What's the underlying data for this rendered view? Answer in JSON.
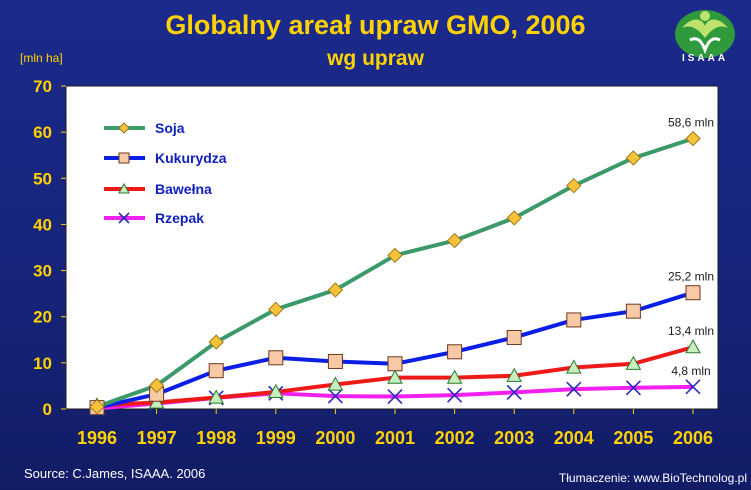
{
  "header": {
    "title": "Globalny areał upraw GMO, 2006",
    "subtitle": "wg upraw",
    "unit_label": "[mln ha]"
  },
  "logo": {
    "text": "ISAAA"
  },
  "footer": {
    "source": "Source: C.James, ISAAA. 2006",
    "translation": "Tłumaczenie: www.BioTechnolog.pl"
  },
  "colors": {
    "title": "#ffd200",
    "axis_text": "#ffd200",
    "legend_text": "#1020c0",
    "plot_bg": "#ffffff",
    "soja": "#3c9a6a",
    "soja_marker": "#f5c23a",
    "kukurydza": "#0a1ee6",
    "kukurydza_marker": "#f7c9a5",
    "bawelna": "#ee1a1a",
    "bawelna_marker": "#c8eec0",
    "rzepak": "#f020f0",
    "rzepak_marker": "#2a2ac0"
  },
  "chart_data": {
    "type": "line",
    "title": "Globalny areał upraw GMO, 2006",
    "subtitle": "wg upraw",
    "xlabel": "",
    "ylabel": "[mln ha]",
    "ylim": [
      0,
      70
    ],
    "yticks": [
      0,
      10,
      20,
      30,
      40,
      50,
      60,
      70
    ],
    "grid": false,
    "legend_position": "top-left",
    "categories": [
      "1996",
      "1997",
      "1998",
      "1999",
      "2000",
      "2001",
      "2002",
      "2003",
      "2004",
      "2005",
      "2006"
    ],
    "series": [
      {
        "name": "Soja",
        "marker": "diamond",
        "values": [
          0.5,
          5.1,
          14.5,
          21.6,
          25.8,
          33.3,
          36.5,
          41.4,
          48.4,
          54.4,
          58.6
        ]
      },
      {
        "name": "Kukurydza",
        "marker": "square",
        "values": [
          0.3,
          3.2,
          8.3,
          11.1,
          10.3,
          9.8,
          12.4,
          15.5,
          19.3,
          21.2,
          25.2
        ]
      },
      {
        "name": "Bawełna",
        "marker": "triangle",
        "values": [
          0.8,
          1.4,
          2.5,
          3.7,
          5.3,
          6.8,
          6.8,
          7.2,
          9.0,
          9.8,
          13.4
        ]
      },
      {
        "name": "Rzepak",
        "marker": "x",
        "values": [
          0.1,
          1.2,
          2.4,
          3.4,
          2.8,
          2.7,
          3.0,
          3.6,
          4.3,
          4.6,
          4.8
        ]
      }
    ],
    "annotations": [
      "58,6 mln",
      "25,2 mln",
      "13,4 mln",
      "4,8 mln"
    ]
  }
}
